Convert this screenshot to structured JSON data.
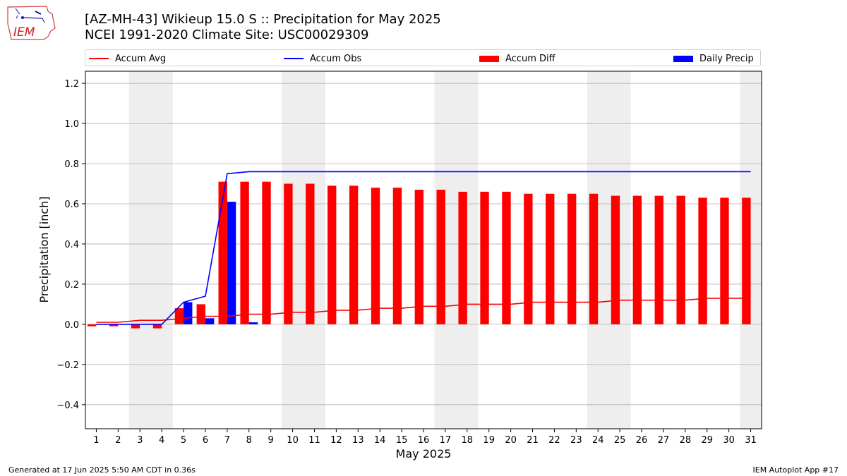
{
  "header": {
    "title_line1": "[AZ-MH-43] Wikieup 15.0 S :: Precipitation for May 2025",
    "title_line2": "NCEI 1991-2020 Climate Site: USC00029309",
    "logo_text": "IEM"
  },
  "footer": {
    "generated": "Generated at 17 Jun 2025 5:50 AM CDT in 0.36s",
    "app": "IEM Autoplot App #17"
  },
  "chart_data": {
    "type": "bar",
    "xlabel": "May 2025",
    "ylabel": "Precipitation [inch]",
    "ylim": [
      -0.52,
      1.26
    ],
    "yticks": [
      -0.4,
      -0.2,
      0.0,
      0.2,
      0.4,
      0.6,
      0.8,
      1.0,
      1.2
    ],
    "ytick_labels": [
      "−0.4",
      "−0.2",
      "0.0",
      "0.2",
      "0.4",
      "0.6",
      "0.8",
      "1.0",
      "1.2"
    ],
    "xlim": [
      0.5,
      31.5
    ],
    "days": [
      1,
      2,
      3,
      4,
      5,
      6,
      7,
      8,
      9,
      10,
      11,
      12,
      13,
      14,
      15,
      16,
      17,
      18,
      19,
      20,
      21,
      22,
      23,
      24,
      25,
      26,
      27,
      28,
      29,
      30,
      31
    ],
    "grid": "horizontal",
    "legend_position": "top",
    "weekend_shading": [
      [
        2.5,
        4.5
      ],
      [
        9.5,
        11.5
      ],
      [
        16.5,
        18.5
      ],
      [
        23.5,
        25.5
      ],
      [
        30.5,
        31.5
      ]
    ],
    "colors": {
      "accum_avg": "#ff0000",
      "accum_obs": "#0000ff",
      "accum_diff": "#ff0000",
      "daily_precip": "#0000ff",
      "weekend": "#eeeeee",
      "grid": "#b0b0b0"
    },
    "series": [
      {
        "name": "Accum Avg",
        "kind": "line",
        "values": [
          0.01,
          0.01,
          0.02,
          0.02,
          0.03,
          0.04,
          0.04,
          0.05,
          0.05,
          0.06,
          0.06,
          0.07,
          0.07,
          0.08,
          0.08,
          0.09,
          0.09,
          0.1,
          0.1,
          0.1,
          0.11,
          0.11,
          0.11,
          0.11,
          0.12,
          0.12,
          0.12,
          0.12,
          0.13,
          0.13,
          0.13
        ]
      },
      {
        "name": "Accum Obs",
        "kind": "line",
        "values": [
          0.0,
          0.0,
          0.0,
          0.0,
          0.11,
          0.14,
          0.75,
          0.76,
          0.76,
          0.76,
          0.76,
          0.76,
          0.76,
          0.76,
          0.76,
          0.76,
          0.76,
          0.76,
          0.76,
          0.76,
          0.76,
          0.76,
          0.76,
          0.76,
          0.76,
          0.76,
          0.76,
          0.76,
          0.76,
          0.76,
          0.76
        ]
      },
      {
        "name": "Accum Diff",
        "kind": "bar",
        "values": [
          -0.01,
          -0.01,
          -0.02,
          -0.02,
          0.08,
          0.1,
          0.71,
          0.71,
          0.71,
          0.7,
          0.7,
          0.69,
          0.69,
          0.68,
          0.68,
          0.67,
          0.67,
          0.66,
          0.66,
          0.66,
          0.65,
          0.65,
          0.65,
          0.65,
          0.64,
          0.64,
          0.64,
          0.64,
          0.63,
          0.63,
          0.63
        ]
      },
      {
        "name": "Daily Precip",
        "kind": "bar",
        "values": [
          0,
          0,
          0,
          0,
          0.11,
          0.03,
          0.61,
          0.01,
          0,
          0,
          0,
          0,
          0,
          0,
          0,
          0,
          0,
          0,
          0,
          0,
          0,
          0,
          0,
          0,
          0,
          0,
          0,
          0,
          0,
          0,
          0
        ]
      }
    ]
  }
}
